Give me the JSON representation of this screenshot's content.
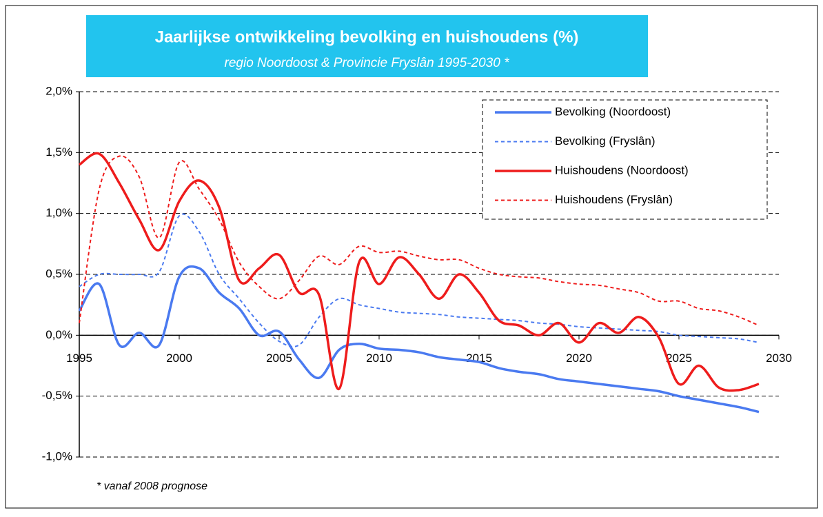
{
  "chart_data": {
    "type": "line",
    "title": "Jaarlijkse ontwikkeling bevolking en huishoudens (%)",
    "subtitle": "regio Noordoost & Provincie Fryslân 1995-2030 *",
    "note": "* vanaf 2008 prognose",
    "x": [
      1995,
      1996,
      1997,
      1998,
      1999,
      2000,
      2001,
      2002,
      2003,
      2004,
      2005,
      2006,
      2007,
      2008,
      2009,
      2010,
      2011,
      2012,
      2013,
      2014,
      2015,
      2016,
      2017,
      2018,
      2019,
      2020,
      2021,
      2022,
      2023,
      2024,
      2025,
      2026,
      2027,
      2028,
      2029
    ],
    "xlim": [
      1995,
      2030
    ],
    "xticks": [
      1995,
      2000,
      2005,
      2010,
      2015,
      2020,
      2025,
      2030
    ],
    "ylim": [
      -1,
      2
    ],
    "yticks": [
      {
        "value": -1,
        "label": "-1,0%"
      },
      {
        "value": -0.5,
        "label": "-0,5%"
      },
      {
        "value": 0,
        "label": "0,0%"
      },
      {
        "value": 0.5,
        "label": "0,5%"
      },
      {
        "value": 1,
        "label": "1,0%"
      },
      {
        "value": 1.5,
        "label": "1,5%"
      },
      {
        "value": 2,
        "label": "2,0%"
      }
    ],
    "grid": true,
    "legend": "top-right",
    "series": [
      {
        "name": "Bevolking (Noordoost)",
        "color": "#4a7af0",
        "dashed": false,
        "values": [
          0.2,
          0.42,
          -0.08,
          0.02,
          -0.08,
          0.48,
          0.55,
          0.35,
          0.22,
          0.0,
          0.03,
          -0.2,
          -0.35,
          -0.12,
          -0.07,
          -0.11,
          -0.12,
          -0.14,
          -0.18,
          -0.2,
          -0.22,
          -0.27,
          -0.3,
          -0.32,
          -0.36,
          -0.38,
          -0.4,
          -0.42,
          -0.44,
          -0.46,
          -0.5,
          -0.53,
          -0.56,
          -0.59,
          -0.63
        ]
      },
      {
        "name": "Bevolking (Fryslân)",
        "color": "#4a7af0",
        "dashed": true,
        "values": [
          0.4,
          0.5,
          0.5,
          0.5,
          0.52,
          0.98,
          0.85,
          0.5,
          0.3,
          0.1,
          -0.05,
          -0.08,
          0.15,
          0.3,
          0.25,
          0.22,
          0.19,
          0.18,
          0.17,
          0.15,
          0.14,
          0.13,
          0.12,
          0.1,
          0.09,
          0.07,
          0.06,
          0.05,
          0.04,
          0.03,
          0.0,
          -0.01,
          -0.02,
          -0.03,
          -0.06
        ]
      },
      {
        "name": "Huishoudens (Noordoost)",
        "color": "#ee1c1c",
        "dashed": false,
        "values": [
          1.4,
          1.49,
          1.25,
          0.95,
          0.7,
          1.1,
          1.27,
          1.05,
          0.45,
          0.55,
          0.66,
          0.35,
          0.33,
          -0.44,
          0.6,
          0.42,
          0.64,
          0.5,
          0.3,
          0.5,
          0.35,
          0.12,
          0.08,
          0.0,
          0.1,
          -0.06,
          0.1,
          0.02,
          0.15,
          -0.02,
          -0.4,
          -0.25,
          -0.43,
          -0.45,
          -0.4
        ]
      },
      {
        "name": "Huishoudens (Fryslân)",
        "color": "#ee1c1c",
        "dashed": true,
        "values": [
          0.1,
          1.2,
          1.47,
          1.3,
          0.8,
          1.42,
          1.2,
          0.95,
          0.6,
          0.4,
          0.3,
          0.45,
          0.65,
          0.58,
          0.73,
          0.68,
          0.69,
          0.65,
          0.62,
          0.62,
          0.55,
          0.5,
          0.48,
          0.47,
          0.44,
          0.42,
          0.41,
          0.38,
          0.35,
          0.28,
          0.28,
          0.22,
          0.2,
          0.15,
          0.08
        ]
      }
    ]
  }
}
